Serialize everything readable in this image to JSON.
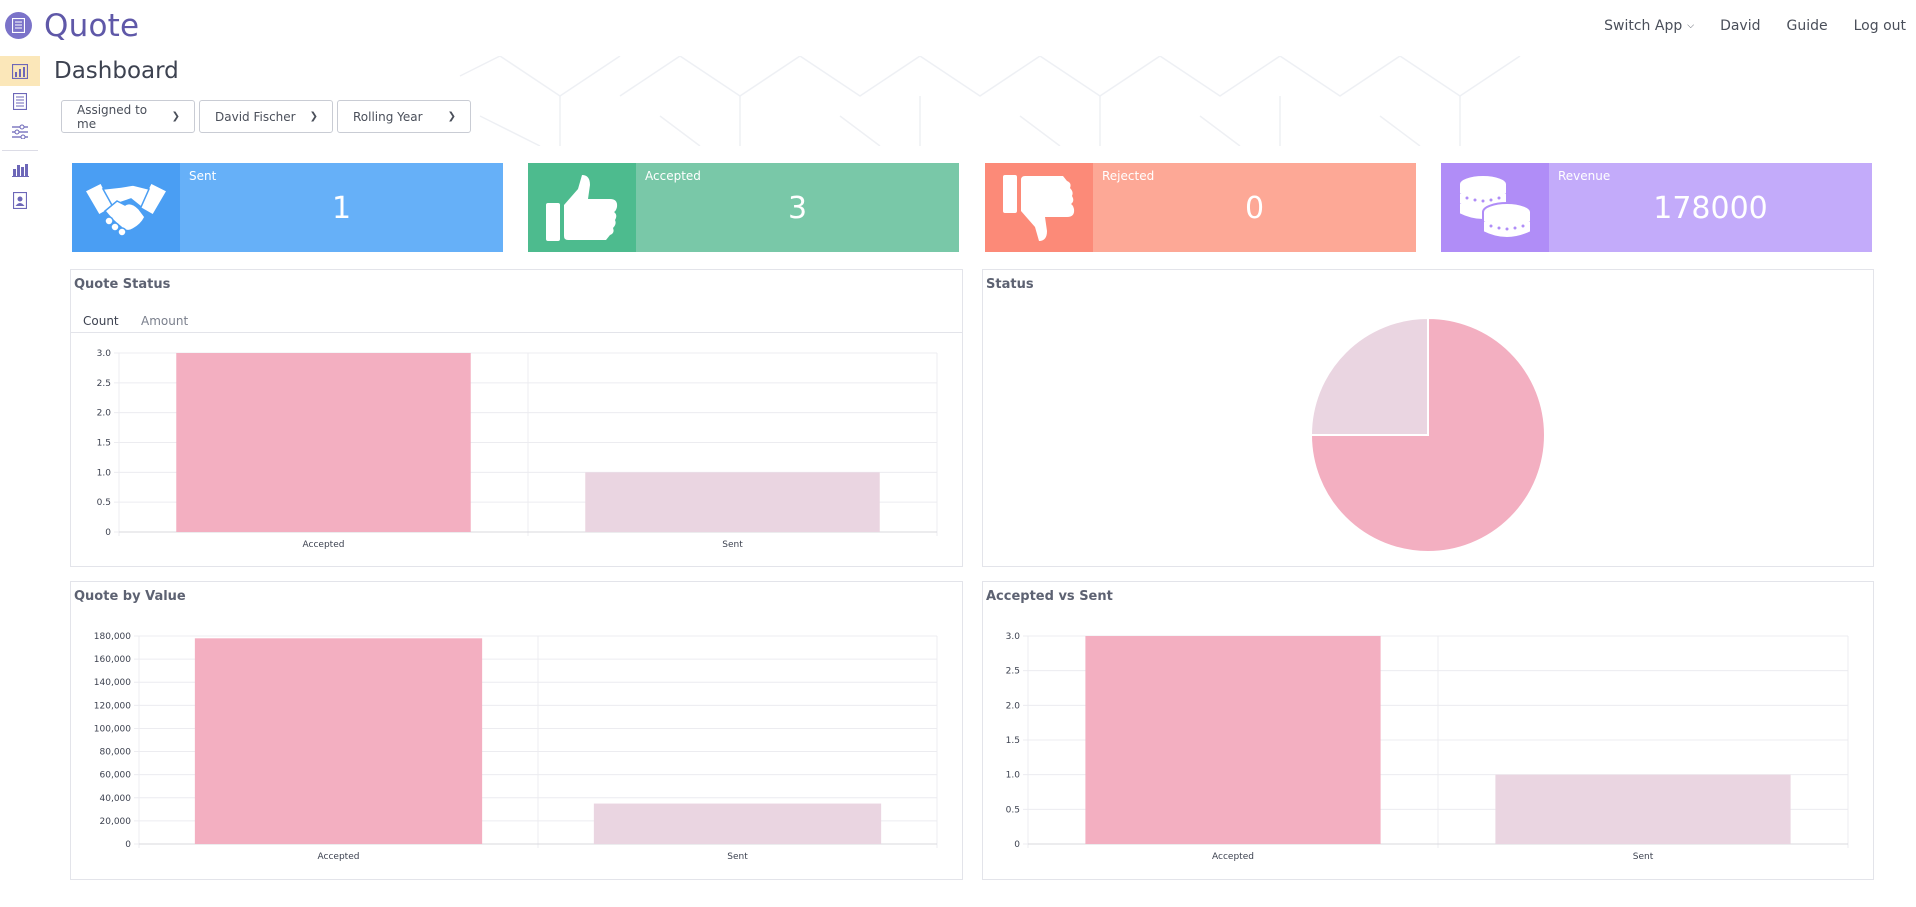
{
  "header": {
    "app_title": "Quote",
    "nav": [
      {
        "label": "Switch App",
        "has_chevron": true
      },
      {
        "label": "David"
      },
      {
        "label": "Guide"
      },
      {
        "label": "Log out"
      }
    ]
  },
  "sidebar": {
    "items": [
      {
        "icon": "bar-chart-icon",
        "active": true
      },
      {
        "icon": "document-list-icon"
      },
      {
        "icon": "sliders-icon"
      },
      {
        "icon": "report-icon"
      },
      {
        "icon": "contact-card-icon"
      }
    ]
  },
  "page": {
    "title": "Dashboard"
  },
  "filters": {
    "assigned": "Assigned to me",
    "person": "David Fischer",
    "period": "Rolling Year"
  },
  "tiles": [
    {
      "label": "Sent",
      "value": "1",
      "icon": "handshake-icon",
      "color_icon": "#4a9ef3",
      "color_body": "#66b0f8"
    },
    {
      "label": "Accepted",
      "value": "3",
      "icon": "thumbs-up-icon",
      "color_icon": "#4dbb8e",
      "color_body": "#79c8a8"
    },
    {
      "label": "Rejected",
      "value": "0",
      "icon": "thumbs-down-icon",
      "color_icon": "#fc8a78",
      "color_body": "#fda896"
    },
    {
      "label": "Revenue",
      "value": "178000",
      "icon": "coins-icon",
      "color_icon": "#b08df7",
      "color_body": "#c3abfa"
    }
  ],
  "panels": {
    "quote_status": {
      "title": "Quote Status",
      "tabs": [
        "Count",
        "Amount"
      ]
    },
    "status": {
      "title": "Status"
    },
    "quote_by_value": {
      "title": "Quote by Value"
    },
    "accepted_vs_sent": {
      "title": "Accepted vs Sent"
    }
  },
  "colors": {
    "accepted": "#f3afc1",
    "sent": "#ead5e1"
  },
  "chart_data": [
    {
      "type": "bar",
      "title": "Quote Status",
      "categories": [
        "Accepted",
        "Sent"
      ],
      "values": [
        3,
        1
      ],
      "ylim": [
        0,
        3
      ],
      "yticks": [
        "0",
        "0.5",
        "1.0",
        "1.5",
        "2.0",
        "2.5",
        "3.0"
      ]
    },
    {
      "type": "pie",
      "title": "Status",
      "labels": [
        "Accepted",
        "Sent"
      ],
      "values": [
        3,
        1
      ]
    },
    {
      "type": "bar",
      "title": "Quote by Value",
      "categories": [
        "Accepted",
        "Sent"
      ],
      "values": [
        178000,
        35000
      ],
      "ylim": [
        0,
        180000
      ],
      "yticks": [
        "0",
        "20,000",
        "40,000",
        "60,000",
        "80,000",
        "100,000",
        "120,000",
        "140,000",
        "160,000",
        "180,000"
      ]
    },
    {
      "type": "bar",
      "title": "Accepted vs Sent",
      "categories": [
        "Accepted",
        "Sent"
      ],
      "values": [
        3,
        1
      ],
      "ylim": [
        0,
        3
      ],
      "yticks": [
        "0",
        "0.5",
        "1.0",
        "1.5",
        "2.0",
        "2.5",
        "3.0"
      ]
    }
  ]
}
